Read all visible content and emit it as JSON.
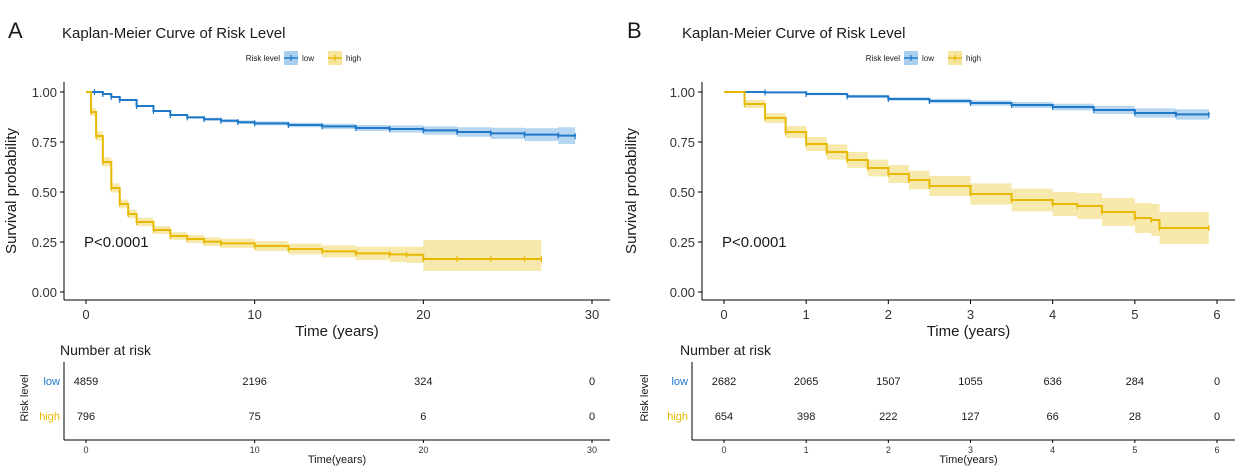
{
  "colors": {
    "low": "#1F78C8",
    "high": "#E8B902",
    "low_band": "#A9CFEE",
    "high_band": "#F6E59E",
    "axis": "#000000"
  },
  "chart_data": [
    {
      "panel": "A",
      "type": "line",
      "title": "Kaplan-Meier Curve of Risk Level",
      "legend": {
        "title": "Risk level",
        "entries": [
          "low",
          "high"
        ],
        "placement": "top-center"
      },
      "xlabel": "Time (years)",
      "ylabel": "Survival probability",
      "xlim": [
        0,
        30
      ],
      "ylim": [
        0,
        1
      ],
      "xticks": [
        "0",
        "10",
        "20",
        "30"
      ],
      "yticks": [
        "0.00",
        "0.25",
        "0.50",
        "0.75",
        "1.00"
      ],
      "annotation": "P<0.0001",
      "grid": false,
      "series": [
        {
          "name": "low",
          "x": [
            0,
            0.5,
            1,
            1.5,
            2,
            3,
            4,
            5,
            6,
            7,
            8,
            9,
            10,
            12,
            14,
            16,
            18,
            20,
            22,
            24,
            26,
            28,
            29
          ],
          "y": [
            1.0,
            1.0,
            0.99,
            0.975,
            0.96,
            0.93,
            0.905,
            0.885,
            0.873,
            0.864,
            0.856,
            0.849,
            0.843,
            0.835,
            0.828,
            0.82,
            0.815,
            0.808,
            0.8,
            0.793,
            0.787,
            0.782,
            0.779
          ],
          "lower": [
            0.998,
            0.998,
            0.987,
            0.972,
            0.957,
            0.926,
            0.9,
            0.88,
            0.867,
            0.857,
            0.848,
            0.84,
            0.833,
            0.824,
            0.815,
            0.805,
            0.797,
            0.787,
            0.776,
            0.765,
            0.755,
            0.74,
            0.74
          ],
          "upper": [
            1.0,
            1.0,
            0.993,
            0.978,
            0.963,
            0.934,
            0.91,
            0.89,
            0.879,
            0.871,
            0.864,
            0.858,
            0.853,
            0.846,
            0.841,
            0.835,
            0.833,
            0.829,
            0.824,
            0.821,
            0.819,
            0.824,
            0.824
          ]
        },
        {
          "name": "high",
          "x": [
            0,
            0.3,
            0.6,
            1,
            1.5,
            2,
            2.5,
            3,
            4,
            5,
            6,
            7,
            8,
            10,
            12,
            14,
            16,
            18,
            19,
            20,
            22,
            24,
            26,
            27
          ],
          "y": [
            1.0,
            0.9,
            0.78,
            0.65,
            0.52,
            0.44,
            0.39,
            0.35,
            0.31,
            0.28,
            0.265,
            0.252,
            0.243,
            0.23,
            0.215,
            0.203,
            0.193,
            0.188,
            0.186,
            0.165,
            0.165,
            0.165,
            0.165,
            0.165
          ],
          "lower": [
            1.0,
            0.88,
            0.757,
            0.627,
            0.497,
            0.418,
            0.368,
            0.329,
            0.29,
            0.261,
            0.245,
            0.23,
            0.22,
            0.205,
            0.188,
            0.173,
            0.16,
            0.15,
            0.145,
            0.105,
            0.105,
            0.105,
            0.105,
            0.105
          ],
          "upper": [
            1.0,
            0.92,
            0.803,
            0.673,
            0.543,
            0.462,
            0.412,
            0.371,
            0.33,
            0.299,
            0.285,
            0.274,
            0.266,
            0.255,
            0.242,
            0.233,
            0.226,
            0.226,
            0.227,
            0.26,
            0.26,
            0.26,
            0.26,
            0.26
          ]
        }
      ],
      "risk_table": {
        "title": "Number at risk",
        "ylabel": "Risk level",
        "xlabel": "Time(years)",
        "time_points": [
          0,
          10,
          20,
          30
        ],
        "xticks": [
          "0",
          "10",
          "20",
          "30"
        ],
        "rows": [
          {
            "label": "low",
            "values": [
              "4859",
              "2196",
              "324",
              "0"
            ]
          },
          {
            "label": "high",
            "values": [
              "796",
              "75",
              "6",
              "0"
            ]
          }
        ]
      }
    },
    {
      "panel": "B",
      "type": "line",
      "title": "Kaplan-Meier Curve of Risk Level",
      "legend": {
        "title": "Risk level",
        "entries": [
          "low",
          "high"
        ],
        "placement": "top-center"
      },
      "xlabel": "Time (years)",
      "ylabel": "Survival probability",
      "xlim": [
        0,
        6
      ],
      "ylim": [
        0,
        1
      ],
      "xticks": [
        "0",
        "1",
        "2",
        "3",
        "4",
        "5",
        "6"
      ],
      "yticks": [
        "0.00",
        "0.25",
        "0.50",
        "0.75",
        "1.00"
      ],
      "annotation": "P<0.0001",
      "grid": false,
      "series": [
        {
          "name": "low",
          "x": [
            0,
            0.5,
            1,
            1.5,
            2,
            2.5,
            3,
            3.5,
            4,
            4.5,
            5,
            5.5,
            5.9
          ],
          "y": [
            1.0,
            0.998,
            0.99,
            0.978,
            0.965,
            0.955,
            0.945,
            0.935,
            0.925,
            0.91,
            0.895,
            0.888,
            0.886
          ],
          "lower": [
            1.0,
            0.994,
            0.984,
            0.97,
            0.956,
            0.944,
            0.932,
            0.92,
            0.908,
            0.89,
            0.872,
            0.862,
            0.86
          ],
          "upper": [
            1.0,
            1.0,
            0.996,
            0.986,
            0.974,
            0.966,
            0.958,
            0.95,
            0.942,
            0.93,
            0.918,
            0.914,
            0.912
          ]
        },
        {
          "name": "high",
          "x": [
            0,
            0.25,
            0.5,
            0.75,
            1,
            1.25,
            1.5,
            1.75,
            2,
            2.25,
            2.5,
            3,
            3.5,
            4,
            4.3,
            4.6,
            5,
            5.2,
            5.3,
            5.9
          ],
          "y": [
            1.0,
            0.94,
            0.87,
            0.8,
            0.74,
            0.7,
            0.66,
            0.62,
            0.59,
            0.56,
            0.53,
            0.49,
            0.46,
            0.44,
            0.43,
            0.4,
            0.37,
            0.36,
            0.32,
            0.32
          ],
          "lower": [
            1.0,
            0.92,
            0.845,
            0.77,
            0.705,
            0.662,
            0.62,
            0.578,
            0.545,
            0.513,
            0.48,
            0.437,
            0.403,
            0.38,
            0.365,
            0.33,
            0.295,
            0.28,
            0.24,
            0.24
          ],
          "upper": [
            1.0,
            0.96,
            0.895,
            0.83,
            0.775,
            0.738,
            0.7,
            0.662,
            0.635,
            0.607,
            0.58,
            0.543,
            0.517,
            0.5,
            0.495,
            0.47,
            0.445,
            0.44,
            0.4,
            0.4
          ]
        }
      ],
      "risk_table": {
        "title": "Number at risk",
        "ylabel": "Risk level",
        "xlabel": "Time(years)",
        "time_points": [
          0,
          1,
          2,
          3,
          4,
          5,
          6
        ],
        "xticks": [
          "0",
          "1",
          "2",
          "3",
          "4",
          "5",
          "6"
        ],
        "rows": [
          {
            "label": "low",
            "values": [
              "2682",
              "2065",
              "1507",
              "1055",
              "636",
              "284",
              "0"
            ]
          },
          {
            "label": "high",
            "values": [
              "654",
              "398",
              "222",
              "127",
              "66",
              "28",
              "0"
            ]
          }
        ]
      }
    }
  ]
}
